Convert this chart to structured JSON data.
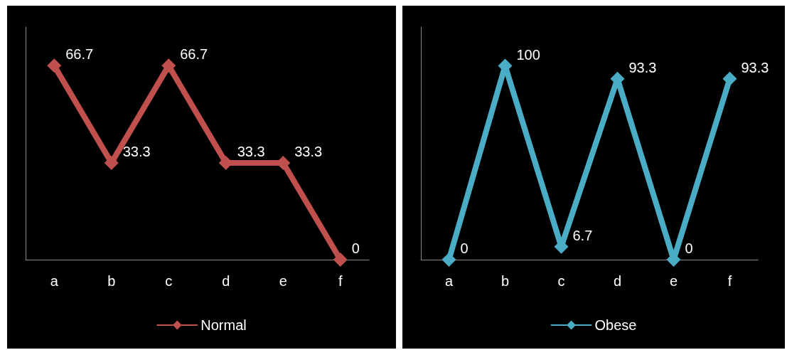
{
  "chart_data": [
    {
      "type": "line",
      "categories": [
        "a",
        "b",
        "c",
        "d",
        "e",
        "f"
      ],
      "series": [
        {
          "name": "Normal",
          "color": "#c0504d",
          "values": [
            66.7,
            33.3,
            66.7,
            33.3,
            33.3,
            0
          ]
        }
      ],
      "ylim": [
        0,
        80
      ],
      "data_labels": true,
      "legend": "bottom",
      "marker": "diamond",
      "tick_labels": "x"
    },
    {
      "type": "line",
      "categories": [
        "a",
        "b",
        "c",
        "d",
        "e",
        "f"
      ],
      "series": [
        {
          "name": "Obese",
          "color": "#4bacc6",
          "values": [
            0,
            100,
            6.7,
            93.3,
            0,
            93.3
          ]
        }
      ],
      "ylim": [
        0,
        120
      ],
      "data_labels": true,
      "legend": "bottom",
      "marker": "diamond",
      "tick_labels": "x"
    }
  ]
}
